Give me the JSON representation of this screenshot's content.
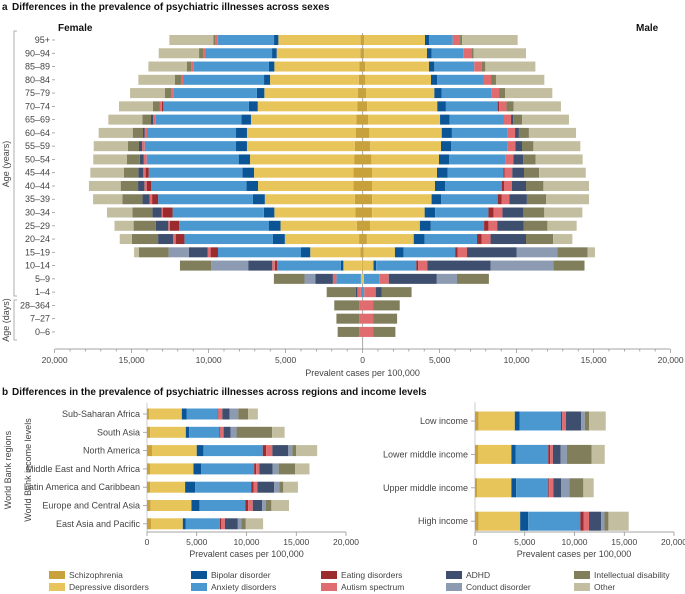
{
  "categories": [
    "Schizophrenia",
    "Depressive disorders",
    "Bipolar disorder",
    "Anxiety disorders",
    "Eating disorders",
    "Autism spectrum",
    "ADHD",
    "Conduct disorder",
    "Intellectual disability",
    "Other"
  ],
  "colors": [
    "#C9A13B",
    "#E8C55B",
    "#0B5597",
    "#4B98D0",
    "#9C2B2E",
    "#E06C70",
    "#3E4E6E",
    "#8C9AB2",
    "#807E5B",
    "#C3BE9F"
  ],
  "legend": {
    "items": [
      "Schizophrenia",
      "Depressive disorders",
      "Bipolar disorder",
      "Anxiety disorders",
      "Eating disorders",
      "Autism spectrum",
      "ADHD",
      "Conduct disorder",
      "Intellectual disability",
      "Other"
    ]
  },
  "chart_data": [
    {
      "type": "bar",
      "orientation": "horizontal-stacked-diverging",
      "panel": "a",
      "title": "Differences in the prevalence of psychiatric illnesses across sexes",
      "xlabel": "Prevalent cases per 100,000",
      "ylabel_years": "Age (years)",
      "ylabel_days": "Age (days)",
      "left_label": "Female",
      "right_label": "Male",
      "xlim": [
        -20000,
        20000
      ],
      "xtick_labels": [
        "20,000",
        "15,000",
        "10,000",
        "5,000",
        "0",
        "5,000",
        "10,000",
        "15,000",
        "20,000"
      ],
      "categories": [
        "95+",
        "90–94",
        "85–89",
        "80–84",
        "75–79",
        "70–74",
        "65–69",
        "60–64",
        "55–59",
        "50–54",
        "45–44",
        "40–44",
        "35–39",
        "30–34",
        "25–29",
        "20–24",
        "15–19",
        "10–14",
        "5–9",
        "1–4",
        "28–364",
        "7–27",
        "0–6"
      ],
      "series": [
        {
          "name": "Female",
          "values": [
            [
              130,
              5340,
              280,
              3660,
              0,
              150,
              0,
              0,
              130,
              2860
            ],
            [
              150,
              5430,
              300,
              4350,
              0,
              130,
              0,
              0,
              260,
              2620
            ],
            [
              200,
              5530,
              350,
              4910,
              0,
              130,
              0,
              0,
              300,
              2490
            ],
            [
              250,
              5760,
              390,
              5260,
              0,
              130,
              0,
              0,
              410,
              2360
            ],
            [
              300,
              6080,
              480,
              5430,
              0,
              150,
              0,
              0,
              390,
              2270
            ],
            [
              350,
              6460,
              570,
              5560,
              100,
              120,
              0,
              0,
              450,
              2210
            ],
            [
              400,
              6850,
              630,
              5580,
              0,
              150,
              130,
              0,
              560,
              2210
            ],
            [
              450,
              7060,
              710,
              5780,
              0,
              150,
              110,
              0,
              670,
              2210
            ],
            [
              500,
              7010,
              710,
              5930,
              0,
              170,
              200,
              0,
              730,
              2210
            ],
            [
              550,
              6760,
              740,
              5970,
              0,
              190,
              260,
              0,
              830,
              2190
            ],
            [
              600,
              6450,
              760,
              6080,
              200,
              150,
              320,
              0,
              950,
              2170
            ],
            [
              600,
              6190,
              760,
              6190,
              280,
              150,
              410,
              0,
              1130,
              2060
            ],
            [
              510,
              5840,
              770,
              6160,
              390,
              170,
              460,
              0,
              1300,
              1900
            ],
            [
              480,
              5250,
              680,
              5930,
              620,
              90,
              600,
              0,
              1300,
              1650
            ],
            [
              370,
              4960,
              770,
              5810,
              600,
              110,
              800,
              0,
              1450,
              1240
            ],
            [
              230,
              4820,
              770,
              5750,
              570,
              170,
              970,
              0,
              1700,
              790
            ],
            [
              140,
              3260,
              600,
              5390,
              480,
              200,
              1220,
              1310,
              1920,
              320
            ],
            [
              50,
              1200,
              170,
              4140,
              140,
              170,
              1560,
              2410,
              2020,
              0
            ],
            [
              0,
              110,
              0,
              1590,
              0,
              230,
              1130,
              710,
              1990,
              0
            ],
            [
              0,
              0,
              0,
              110,
              0,
              230,
              110,
              0,
              1880,
              0
            ],
            [
              0,
              0,
              0,
              0,
              0,
              230,
              0,
              0,
              1610,
              0
            ],
            [
              0,
              0,
              0,
              0,
              0,
              230,
              0,
              0,
              1470,
              0
            ],
            [
              0,
              0,
              0,
              0,
              0,
              230,
              0,
              0,
              1390,
              0
            ]
          ]
        },
        {
          "name": "Male",
          "values": [
            [
              90,
              3960,
              280,
              1520,
              0,
              480,
              0,
              0,
              130,
              3610
            ],
            [
              100,
              4080,
              310,
              2050,
              0,
              520,
              0,
              0,
              150,
              3400
            ],
            [
              160,
              4150,
              350,
              2590,
              0,
              500,
              0,
              0,
              220,
              3250
            ],
            [
              180,
              4260,
              410,
              3030,
              0,
              460,
              0,
              0,
              320,
              3140
            ],
            [
              220,
              4440,
              480,
              3250,
              0,
              470,
              0,
              0,
              390,
              3070
            ],
            [
              290,
              4560,
              560,
              3360,
              90,
              480,
              0,
              0,
              470,
              3070
            ],
            [
              350,
              4680,
              620,
              3530,
              0,
              460,
              130,
              0,
              580,
              3050
            ],
            [
              440,
              4700,
              660,
              3620,
              0,
              480,
              250,
              0,
              650,
              3060
            ],
            [
              500,
              4590,
              670,
              3660,
              0,
              500,
              430,
              0,
              740,
              3050
            ],
            [
              570,
              4390,
              670,
              3660,
              0,
              500,
              630,
              0,
              820,
              3050
            ],
            [
              610,
              4220,
              700,
              3610,
              90,
              490,
              760,
              0,
              980,
              3030
            ],
            [
              610,
              4090,
              670,
              3680,
              130,
              520,
              910,
              0,
              1130,
              2960
            ],
            [
              620,
              3860,
              630,
              3660,
              250,
              510,
              1140,
              0,
              1240,
              2790
            ],
            [
              620,
              3410,
              680,
              3460,
              340,
              570,
              1360,
              0,
              1360,
              2470
            ],
            [
              480,
              3240,
              710,
              3460,
              280,
              570,
              1730,
              0,
              1530,
              1900
            ],
            [
              280,
              3040,
              710,
              3400,
              290,
              590,
              2300,
              0,
              1760,
              1250
            ],
            [
              60,
              2040,
              570,
              3340,
              170,
              600,
              3230,
              2640,
              1960,
              480
            ],
            [
              0,
              710,
              170,
              2610,
              110,
              600,
              4110,
              4090,
              2010,
              0
            ],
            [
              0,
              90,
              0,
              990,
              0,
              620,
              3120,
              1310,
              2070,
              0
            ],
            [
              0,
              0,
              0,
              110,
              0,
              740,
              400,
              0,
              1930,
              0
            ],
            [
              0,
              0,
              0,
              0,
              0,
              680,
              0,
              0,
              1730,
              0
            ],
            [
              0,
              0,
              0,
              0,
              0,
              680,
              0,
              0,
              1560,
              0
            ],
            [
              0,
              0,
              0,
              0,
              0,
              680,
              0,
              0,
              1450,
              0
            ]
          ]
        }
      ]
    },
    {
      "type": "bar",
      "orientation": "horizontal-stacked",
      "panel": "b",
      "title": "Differences in the prevalence of psychiatric illnesses across regions and income levels",
      "xlabel": "Prevalent cases per 100,000",
      "ylabel": "World Bank regions",
      "xlim": [
        0,
        20000
      ],
      "xtick_labels": [
        "0",
        "5,000",
        "10,000",
        "15,000",
        "20,000"
      ],
      "categories": [
        "Sub-Saharan Africa",
        "South Asia",
        "North America",
        "Middle East and North Africa",
        "Latin America and Caribbean",
        "Europe and Central Asia",
        "East Asia and Pacific"
      ],
      "values": [
        [
          230,
          3270,
          470,
          3130,
          70,
          400,
          730,
          870,
          1000,
          970
        ],
        [
          330,
          3570,
          330,
          3040,
          100,
          330,
          700,
          600,
          3570,
          1260
        ],
        [
          500,
          4500,
          670,
          5960,
          340,
          630,
          1600,
          400,
          400,
          2100
        ],
        [
          300,
          4370,
          760,
          5340,
          200,
          330,
          1330,
          600,
          1670,
          1430
        ],
        [
          330,
          3500,
          1000,
          5640,
          230,
          400,
          1670,
          530,
          400,
          1470
        ],
        [
          370,
          4100,
          800,
          4630,
          270,
          460,
          940,
          360,
          570,
          1770
        ],
        [
          400,
          3200,
          270,
          3460,
          140,
          360,
          1300,
          340,
          460,
          1740
        ]
      ]
    },
    {
      "type": "bar",
      "orientation": "horizontal-stacked",
      "panel": "b",
      "xlabel": "Prevalent cases per 100,000",
      "ylabel": "World Bank income levels",
      "xlim": [
        0,
        20000
      ],
      "xtick_labels": [
        "0",
        "5,000",
        "10,000",
        "15,000",
        "20,000"
      ],
      "categories": [
        "Low income",
        "Lower middle income",
        "Upper middle income",
        "High income"
      ],
      "values": [
        [
          370,
          3630,
          500,
          4140,
          130,
          370,
          1520,
          370,
          430,
          1680
        ],
        [
          300,
          3360,
          440,
          3260,
          200,
          270,
          770,
          640,
          2490,
          1310
        ],
        [
          200,
          3460,
          480,
          3220,
          100,
          410,
          800,
          810,
          1410,
          1040
        ],
        [
          370,
          4170,
          810,
          5240,
          340,
          530,
          1210,
          340,
          400,
          2040
        ]
      ]
    }
  ]
}
